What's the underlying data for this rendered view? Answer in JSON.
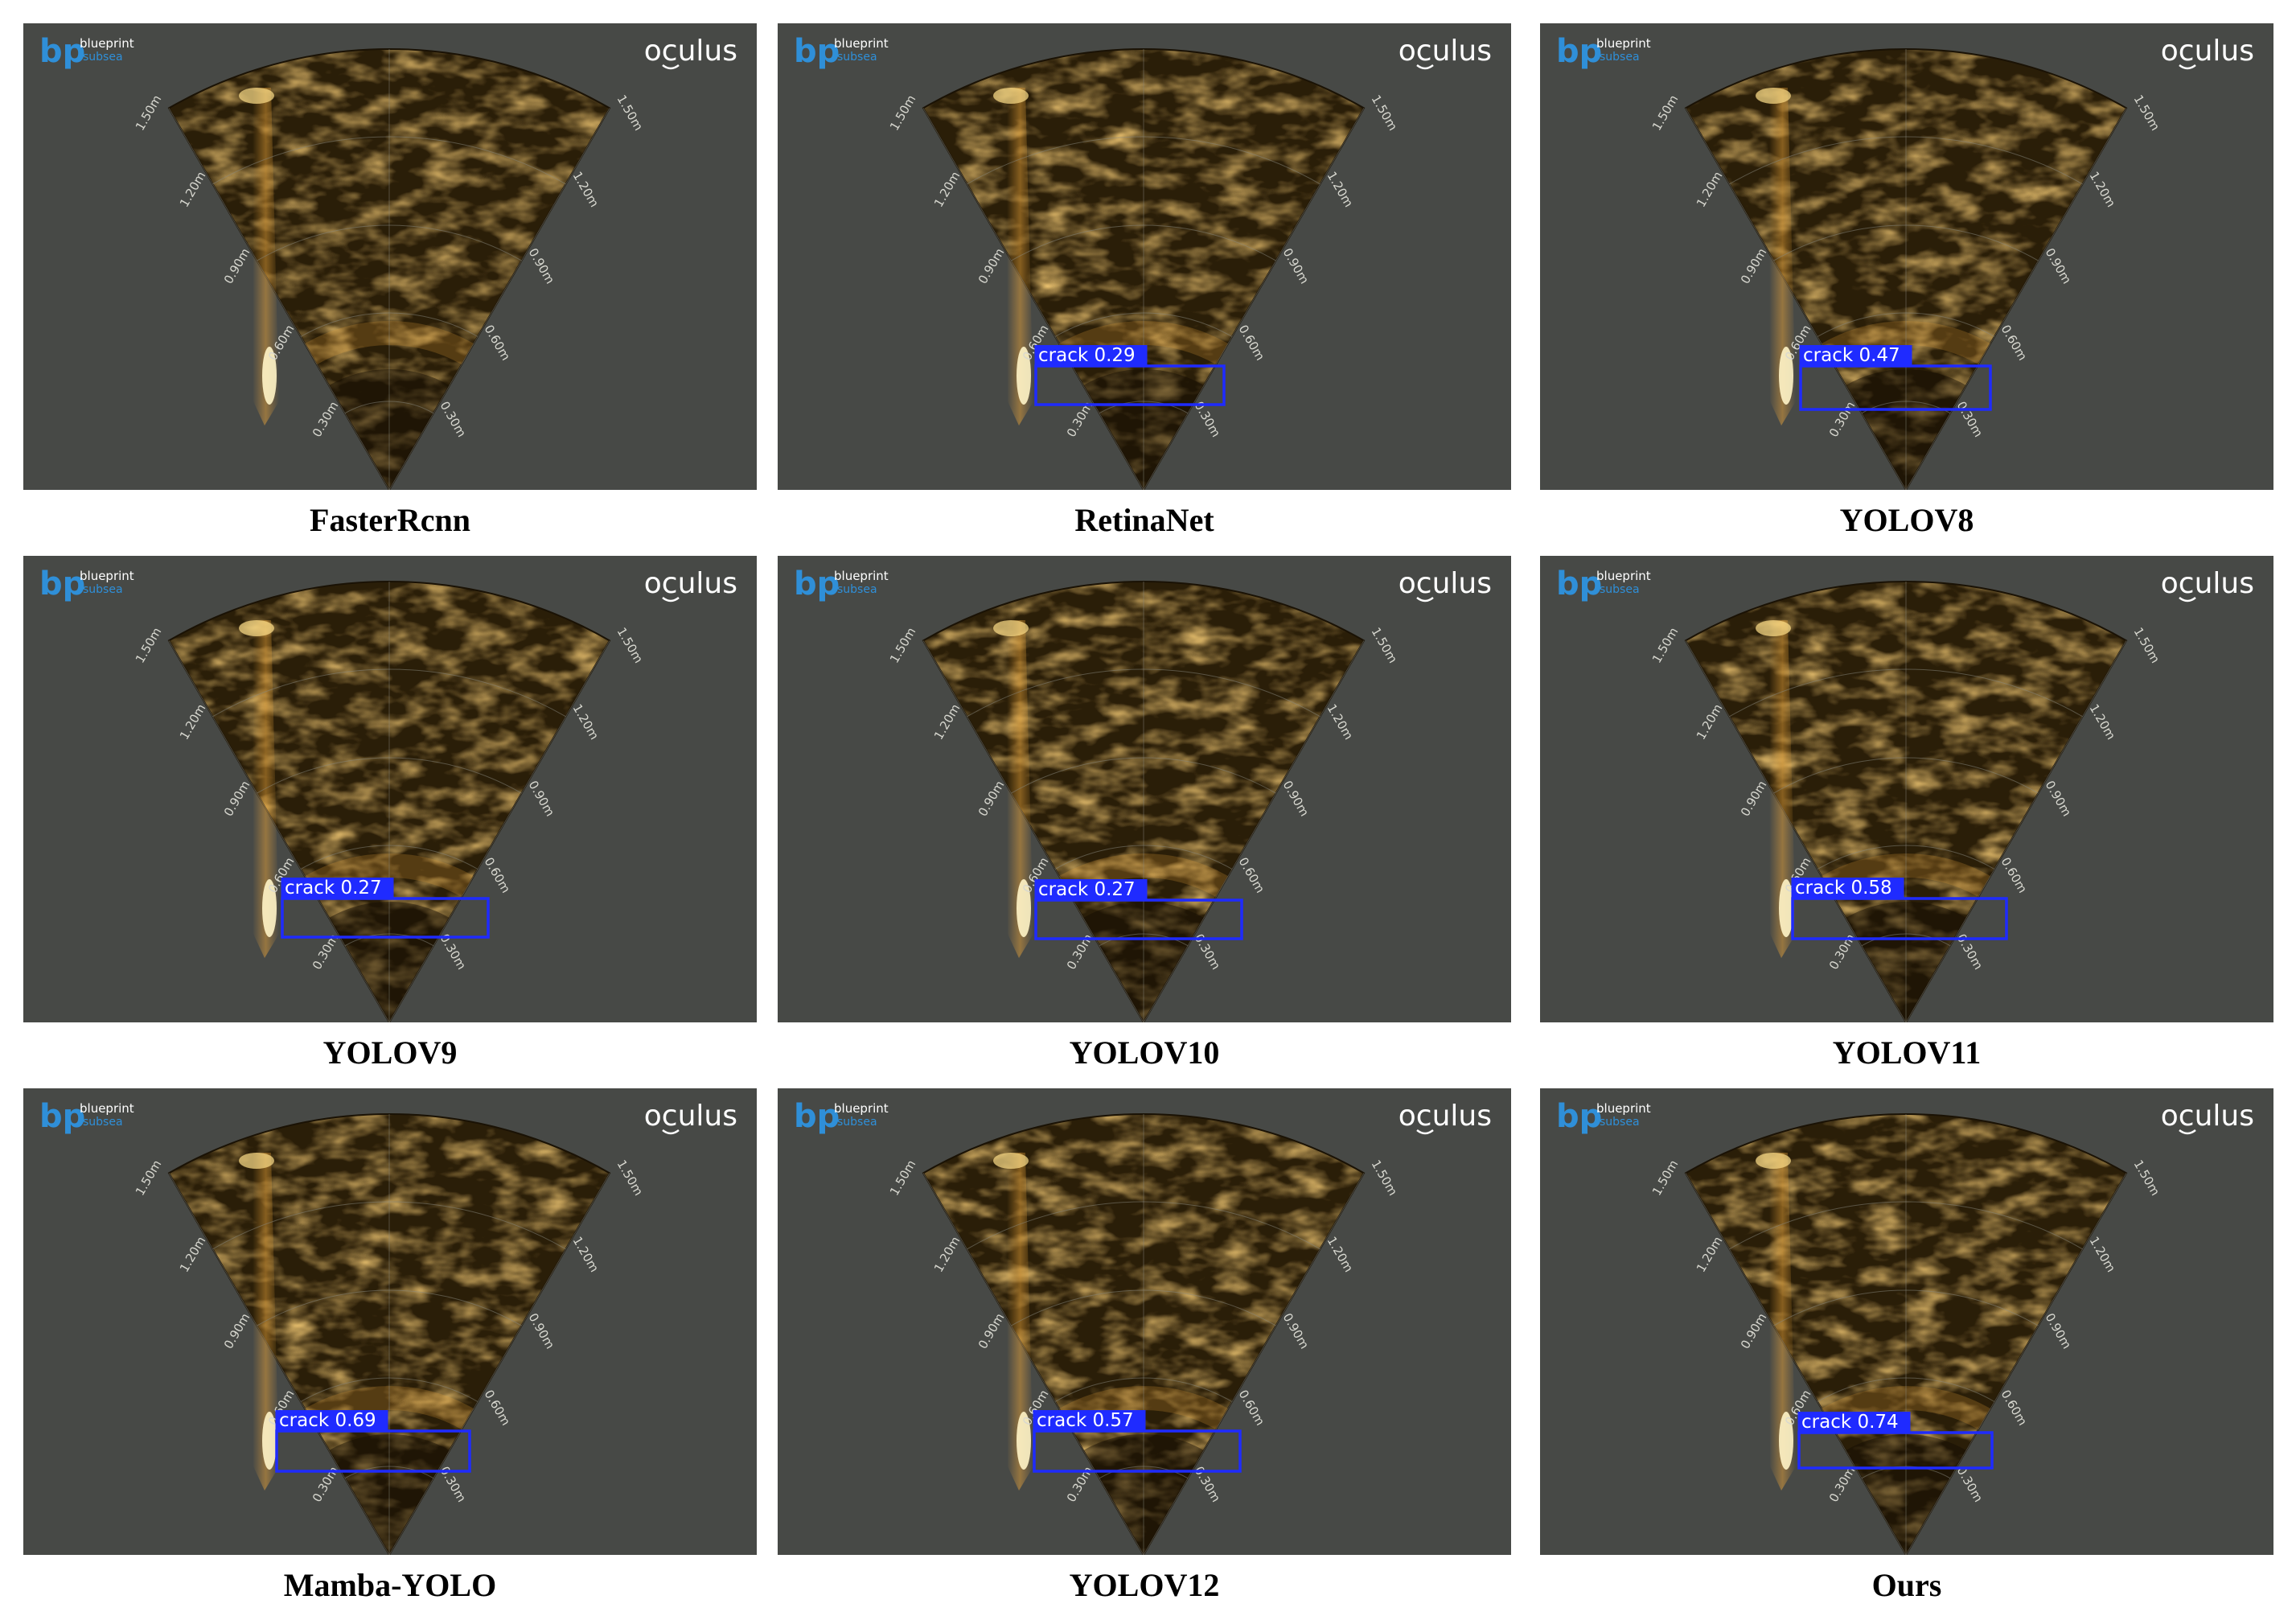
{
  "panels": [
    {
      "method": "FasterRcnn",
      "detection": null
    },
    {
      "method": "RetinaNet",
      "detection": {
        "label": "crack 0.29",
        "class": "crack",
        "confidence": 0.29
      }
    },
    {
      "method": "YOLOV8",
      "detection": {
        "label": "crack 0.47",
        "class": "crack",
        "confidence": 0.47
      }
    },
    {
      "method": "YOLOV9",
      "detection": {
        "label": "crack 0.27",
        "class": "crack",
        "confidence": 0.27
      }
    },
    {
      "method": "YOLOV10",
      "detection": {
        "label": "crack 0.27",
        "class": "crack",
        "confidence": 0.27
      }
    },
    {
      "method": "YOLOV11",
      "detection": {
        "label": "crack 0.58",
        "class": "crack",
        "confidence": 0.58
      }
    },
    {
      "method": "Mamba-YOLO",
      "detection": {
        "label": "crack 0.69",
        "class": "crack",
        "confidence": 0.69
      }
    },
    {
      "method": "YOLOV12",
      "detection": {
        "label": "crack 0.57",
        "class": "crack",
        "confidence": 0.57
      }
    },
    {
      "method": "Ours",
      "detection": {
        "label": "crack 0.74",
        "class": "crack",
        "confidence": 0.74
      }
    }
  ],
  "sonar": {
    "brand_logo_line1": "blueprint",
    "brand_logo_line2": "subsea",
    "brand_logo_mark": "bp",
    "product_logo": "oculus",
    "range_labels": [
      "0.30m",
      "0.60m",
      "0.90m",
      "1.20m",
      "1.50m"
    ]
  },
  "colors": {
    "panel_background": "#474946",
    "sonar_dark": "#2a1e08",
    "sonar_bright": "#f0a83a",
    "detection_box": "#1f2bff",
    "brand_blue": "#2f8fd8"
  }
}
